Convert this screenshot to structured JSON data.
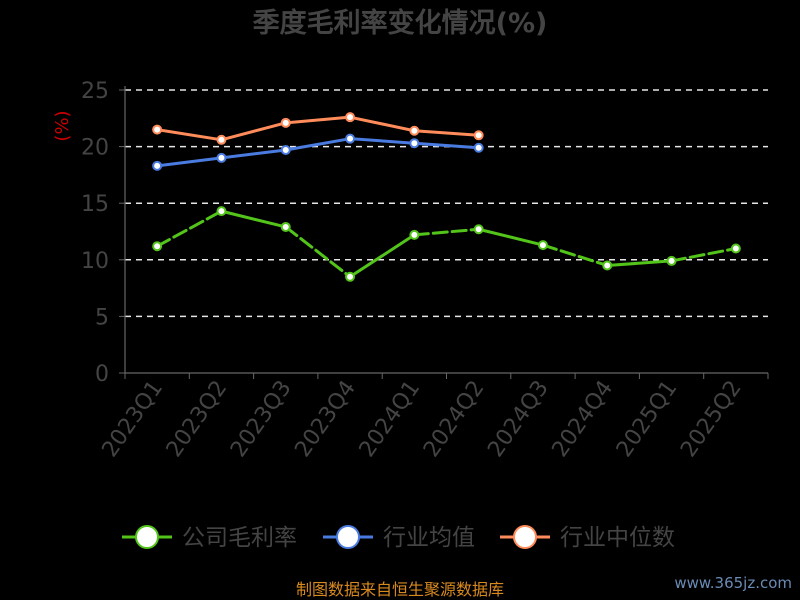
{
  "chart_data": {
    "type": "line",
    "title": "季度毛利率变化情况(%)",
    "ylabel": "(%)",
    "xlabel": "",
    "ylim": [
      0,
      25
    ],
    "yticks": [
      0,
      5,
      10,
      15,
      20,
      25
    ],
    "grid": "horizontal-dashed",
    "legend": "bottom",
    "categories": [
      "2023Q1",
      "2023Q2",
      "2023Q3",
      "2023Q4",
      "2024Q1",
      "2024Q2",
      "2024Q3",
      "2024Q4",
      "2025Q1",
      "2025Q2"
    ],
    "series": [
      {
        "name": "公司毛利率",
        "color": "#52c41a",
        "style": "dash-solid-alternating",
        "values": [
          11.2,
          14.3,
          12.9,
          8.5,
          12.2,
          12.7,
          11.3,
          9.5,
          9.9,
          11.0
        ]
      },
      {
        "name": "行业均值",
        "color": "#4a7be0",
        "values": [
          18.3,
          19.0,
          19.7,
          20.7,
          20.3,
          19.9,
          null,
          null,
          null,
          null
        ]
      },
      {
        "name": "行业中位数",
        "color": "#ff8c5a",
        "values": [
          21.5,
          20.6,
          22.1,
          22.6,
          21.4,
          21.0,
          null,
          null,
          null,
          null
        ]
      }
    ]
  },
  "footer": "制图数据来自恒生聚源数据库",
  "watermark": "www.365jz.com"
}
